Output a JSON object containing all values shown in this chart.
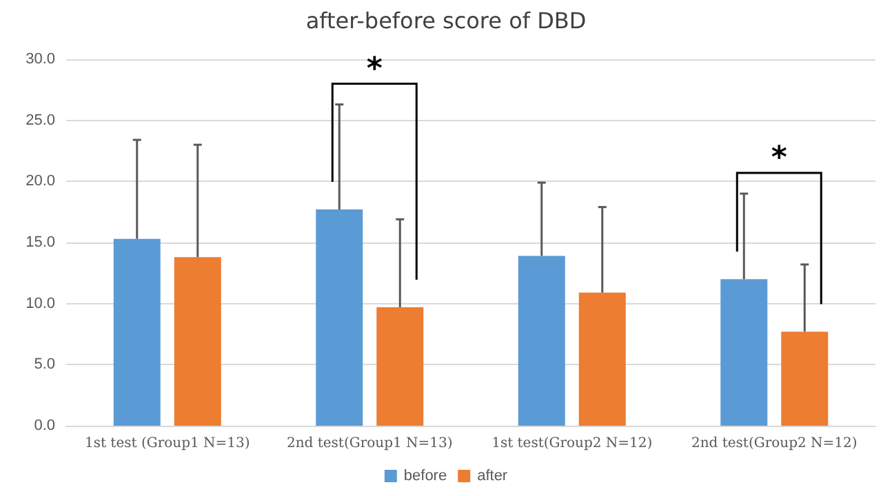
{
  "chart_data": {
    "type": "bar",
    "title": "after-before score of DBD",
    "categories": [
      "1st test (Group1 N=13)",
      "2nd test(Group1 N=13)",
      "1st test(Group2 N=12)",
      "2nd test(Group2 N=12)"
    ],
    "series": [
      {
        "name": "before",
        "color": "#5b9bd5",
        "values": [
          15.3,
          17.7,
          13.9,
          12.0
        ],
        "errors": [
          [
            15.3,
            23.4
          ],
          [
            17.7,
            26.3
          ],
          [
            13.9,
            19.9
          ],
          [
            12.0,
            19.0
          ]
        ]
      },
      {
        "name": "after",
        "color": "#ed7d31",
        "values": [
          13.8,
          9.7,
          10.9,
          7.7
        ],
        "errors": [
          [
            13.8,
            23.0
          ],
          [
            9.7,
            16.9
          ],
          [
            10.9,
            17.9
          ],
          [
            7.7,
            13.2
          ]
        ]
      }
    ],
    "ylim": [
      0,
      30
    ],
    "yticks": [
      {
        "value": 0,
        "label": "0.0"
      },
      {
        "value": 5,
        "label": "5.0"
      },
      {
        "value": 10,
        "label": "10.0"
      },
      {
        "value": 15,
        "label": "15.0"
      },
      {
        "value": 20,
        "label": "20.0"
      },
      {
        "value": 25,
        "label": "25.0"
      },
      {
        "value": 30,
        "label": "30.0"
      }
    ],
    "grid": "y",
    "legend": "bottom",
    "annotations": [
      "*",
      "*"
    ]
  }
}
